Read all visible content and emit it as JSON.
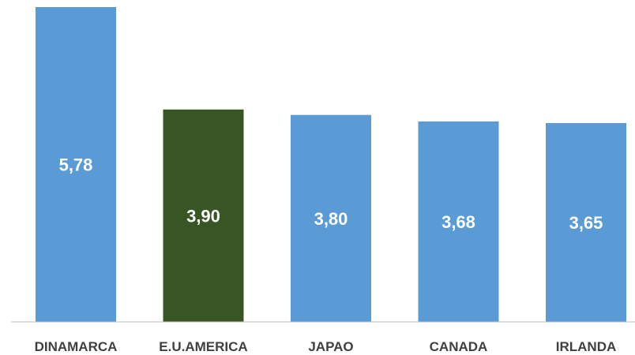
{
  "chart_data": {
    "type": "bar",
    "categories": [
      "DINAMARCA",
      "E.U.AMERICA",
      "JAPAO",
      "CANADA",
      "IRLANDA"
    ],
    "values": [
      5.78,
      3.9,
      3.8,
      3.68,
      3.65
    ],
    "value_labels": [
      "5,78",
      "3,90",
      "3,80",
      "3,68",
      "3,65"
    ],
    "highlight_index": 1,
    "colors": {
      "default": "#5b9bd5",
      "highlight": "#375623",
      "axis": "#bfbfbf",
      "data_label": "#ffffff",
      "category_label": "#404040"
    },
    "title": "",
    "xlabel": "",
    "ylabel": "",
    "ylim": [
      0,
      5.78
    ],
    "grid": false,
    "legend": "none"
  }
}
